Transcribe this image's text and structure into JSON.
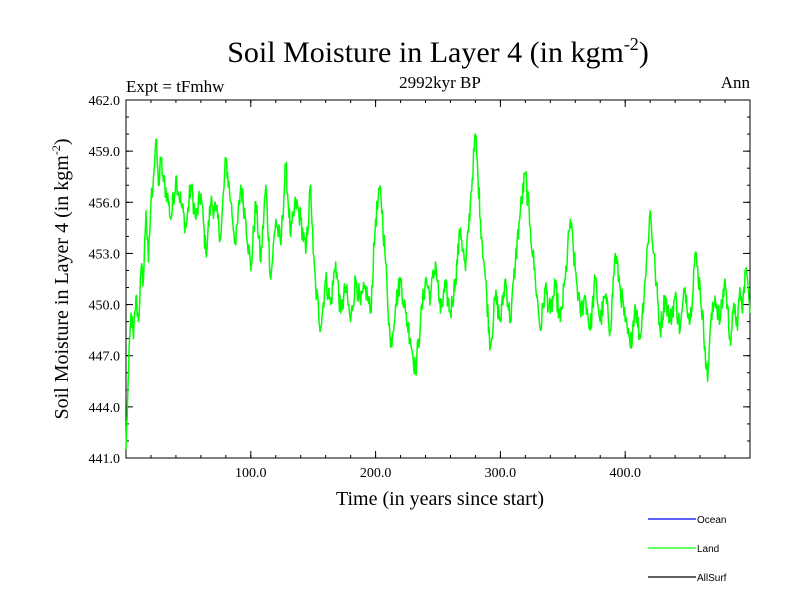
{
  "chart_data": {
    "type": "line",
    "title": "Soil Moisture in Layer 4 (in kgm",
    "title_sup": "-2",
    "title_end": ")",
    "subtitle": "2992kyr BP",
    "left_label": "Expt = tFmhw",
    "right_label": "Ann",
    "xlabel": "Time (in years since start)",
    "ylabel": "Soil Moisture in Layer 4 (in kgm",
    "ylabel_sup": "-2",
    "ylabel_end": ")",
    "xlim": [
      0,
      500
    ],
    "ylim": [
      441,
      462
    ],
    "x_ticks": [
      100,
      200,
      300,
      400
    ],
    "x_tick_labels": [
      "100.0",
      "200.0",
      "300.0",
      "400.0"
    ],
    "y_ticks": [
      441,
      444,
      447,
      450,
      453,
      456,
      459,
      462
    ],
    "y_tick_labels": [
      "441.0",
      "444.0",
      "447.0",
      "450.0",
      "453.0",
      "456.0",
      "459.0",
      "462.0"
    ],
    "legend": [
      {
        "name": "Ocean",
        "color": "#0000ff"
      },
      {
        "name": "Land",
        "color": "#00ff00"
      },
      {
        "name": "AllSurf",
        "color": "#000000"
      }
    ],
    "series": [
      {
        "name": "Land",
        "color": "#00ff00",
        "keypoints": [
          [
            0,
            441.5
          ],
          [
            2,
            446.0
          ],
          [
            4,
            449.5
          ],
          [
            6,
            448.0
          ],
          [
            8,
            450.5
          ],
          [
            10,
            449.0
          ],
          [
            12,
            452.0
          ],
          [
            14,
            451.5
          ],
          [
            16,
            455.5
          ],
          [
            18,
            452.5
          ],
          [
            20,
            456.0
          ],
          [
            22,
            457.5
          ],
          [
            24,
            459.7
          ],
          [
            26,
            457.0
          ],
          [
            28,
            458.5
          ],
          [
            30,
            457.2
          ],
          [
            33,
            456.5
          ],
          [
            36,
            455.0
          ],
          [
            40,
            457.5
          ],
          [
            44,
            456.0
          ],
          [
            48,
            454.5
          ],
          [
            52,
            457.0
          ],
          [
            56,
            455.0
          ],
          [
            60,
            456.5
          ],
          [
            64,
            453.0
          ],
          [
            68,
            456.0
          ],
          [
            72,
            455.5
          ],
          [
            76,
            454.0
          ],
          [
            80,
            458.6
          ],
          [
            84,
            456.0
          ],
          [
            88,
            453.5
          ],
          [
            92,
            457.0
          ],
          [
            96,
            455.0
          ],
          [
            100,
            452.0
          ],
          [
            104,
            456.0
          ],
          [
            108,
            452.5
          ],
          [
            112,
            457.0
          ],
          [
            116,
            451.5
          ],
          [
            120,
            455.0
          ],
          [
            124,
            453.5
          ],
          [
            128,
            458.2
          ],
          [
            132,
            454.0
          ],
          [
            136,
            456.0
          ],
          [
            140,
            455.0
          ],
          [
            144,
            453.0
          ],
          [
            148,
            457.0
          ],
          [
            150,
            453.0
          ],
          [
            152,
            451.0
          ],
          [
            156,
            448.7
          ],
          [
            160,
            451.5
          ],
          [
            164,
            450.0
          ],
          [
            168,
            452.5
          ],
          [
            172,
            449.5
          ],
          [
            176,
            451.0
          ],
          [
            180,
            449.0
          ],
          [
            184,
            451.5
          ],
          [
            188,
            450.0
          ],
          [
            192,
            451.0
          ],
          [
            196,
            449.5
          ],
          [
            200,
            455.0
          ],
          [
            204,
            456.8
          ],
          [
            208,
            452.5
          ],
          [
            212,
            447.5
          ],
          [
            216,
            450.0
          ],
          [
            220,
            451.5
          ],
          [
            224,
            449.5
          ],
          [
            228,
            448.0
          ],
          [
            232,
            446.1
          ],
          [
            236,
            449.0
          ],
          [
            240,
            451.5
          ],
          [
            244,
            450.5
          ],
          [
            248,
            452.5
          ],
          [
            252,
            449.5
          ],
          [
            256,
            451.0
          ],
          [
            260,
            449.5
          ],
          [
            264,
            451.5
          ],
          [
            268,
            454.5
          ],
          [
            272,
            452.0
          ],
          [
            276,
            456.0
          ],
          [
            280,
            460.0
          ],
          [
            284,
            455.0
          ],
          [
            288,
            451.5
          ],
          [
            292,
            447.5
          ],
          [
            296,
            450.5
          ],
          [
            300,
            449.0
          ],
          [
            304,
            451.5
          ],
          [
            308,
            449.0
          ],
          [
            312,
            452.5
          ],
          [
            316,
            455.5
          ],
          [
            320,
            457.7
          ],
          [
            324,
            454.5
          ],
          [
            328,
            451.5
          ],
          [
            332,
            448.5
          ],
          [
            336,
            451.0
          ],
          [
            340,
            449.5
          ],
          [
            344,
            451.0
          ],
          [
            348,
            449.0
          ],
          [
            352,
            451.5
          ],
          [
            356,
            455.0
          ],
          [
            360,
            452.0
          ],
          [
            364,
            449.5
          ],
          [
            368,
            450.5
          ],
          [
            372,
            448.5
          ],
          [
            376,
            451.5
          ],
          [
            380,
            449.0
          ],
          [
            384,
            450.5
          ],
          [
            388,
            448.5
          ],
          [
            392,
            453.0
          ],
          [
            396,
            451.0
          ],
          [
            400,
            449.0
          ],
          [
            404,
            447.5
          ],
          [
            408,
            450.0
          ],
          [
            412,
            448.0
          ],
          [
            416,
            451.5
          ],
          [
            420,
            455.5
          ],
          [
            424,
            452.0
          ],
          [
            428,
            448.5
          ],
          [
            432,
            450.5
          ],
          [
            436,
            449.0
          ],
          [
            440,
            450.5
          ],
          [
            444,
            448.5
          ],
          [
            448,
            451.0
          ],
          [
            452,
            449.0
          ],
          [
            456,
            453.0
          ],
          [
            460,
            451.0
          ],
          [
            464,
            447.5
          ],
          [
            466,
            445.5
          ],
          [
            468,
            448.5
          ],
          [
            472,
            450.5
          ],
          [
            476,
            449.0
          ],
          [
            480,
            451.5
          ],
          [
            484,
            448.0
          ],
          [
            488,
            450.0
          ],
          [
            490,
            448.5
          ],
          [
            492,
            451.0
          ],
          [
            494,
            449.5
          ],
          [
            496,
            452.0
          ],
          [
            498,
            451.5
          ]
        ]
      }
    ]
  }
}
